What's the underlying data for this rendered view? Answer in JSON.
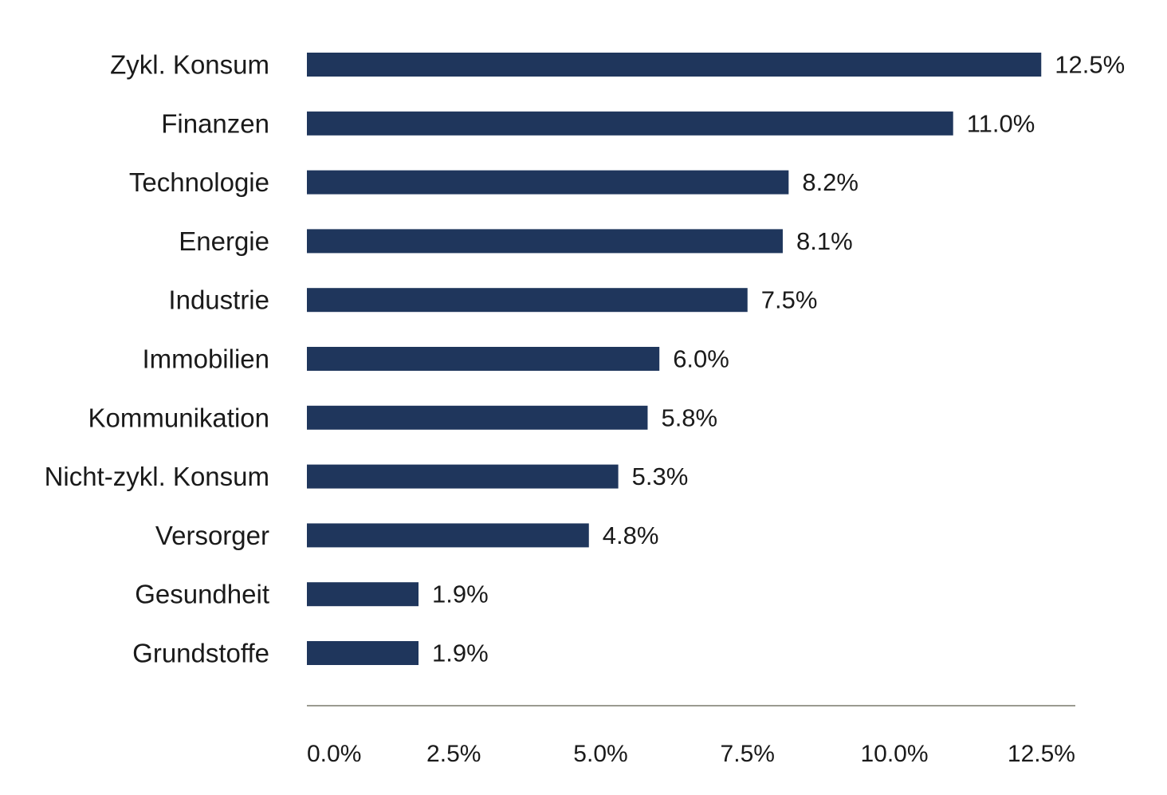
{
  "chart_data": {
    "type": "bar",
    "orientation": "horizontal",
    "title": "",
    "xlabel": "",
    "ylabel": "",
    "categories": [
      "Zykl. Konsum",
      "Finanzen",
      "Technologie",
      "Energie",
      "Industrie",
      "Immobilien",
      "Kommunikation",
      "Nicht-zykl. Konsum",
      "Versorger",
      "Gesundheit",
      "Grundstoffe"
    ],
    "values": [
      12.5,
      11.0,
      8.2,
      8.1,
      7.5,
      6.0,
      5.8,
      5.3,
      4.8,
      1.9,
      1.9
    ],
    "value_labels": [
      "12.5%",
      "11.0%",
      "8.2%",
      "8.1%",
      "7.5%",
      "6.0%",
      "5.8%",
      "5.3%",
      "4.8%",
      "1.9%",
      "1.9%"
    ],
    "xlim": [
      0,
      13
    ],
    "x_ticks": [
      0,
      2.5,
      5,
      7.5,
      10,
      12.5
    ],
    "x_tick_labels": [
      "0.0%",
      "2.5%",
      "5.0%",
      "7.5%",
      "10.0%",
      "12.5%"
    ],
    "grid": false,
    "legend": "none",
    "bar_color": "#1f365c",
    "axis_color": "#9a9a90"
  }
}
